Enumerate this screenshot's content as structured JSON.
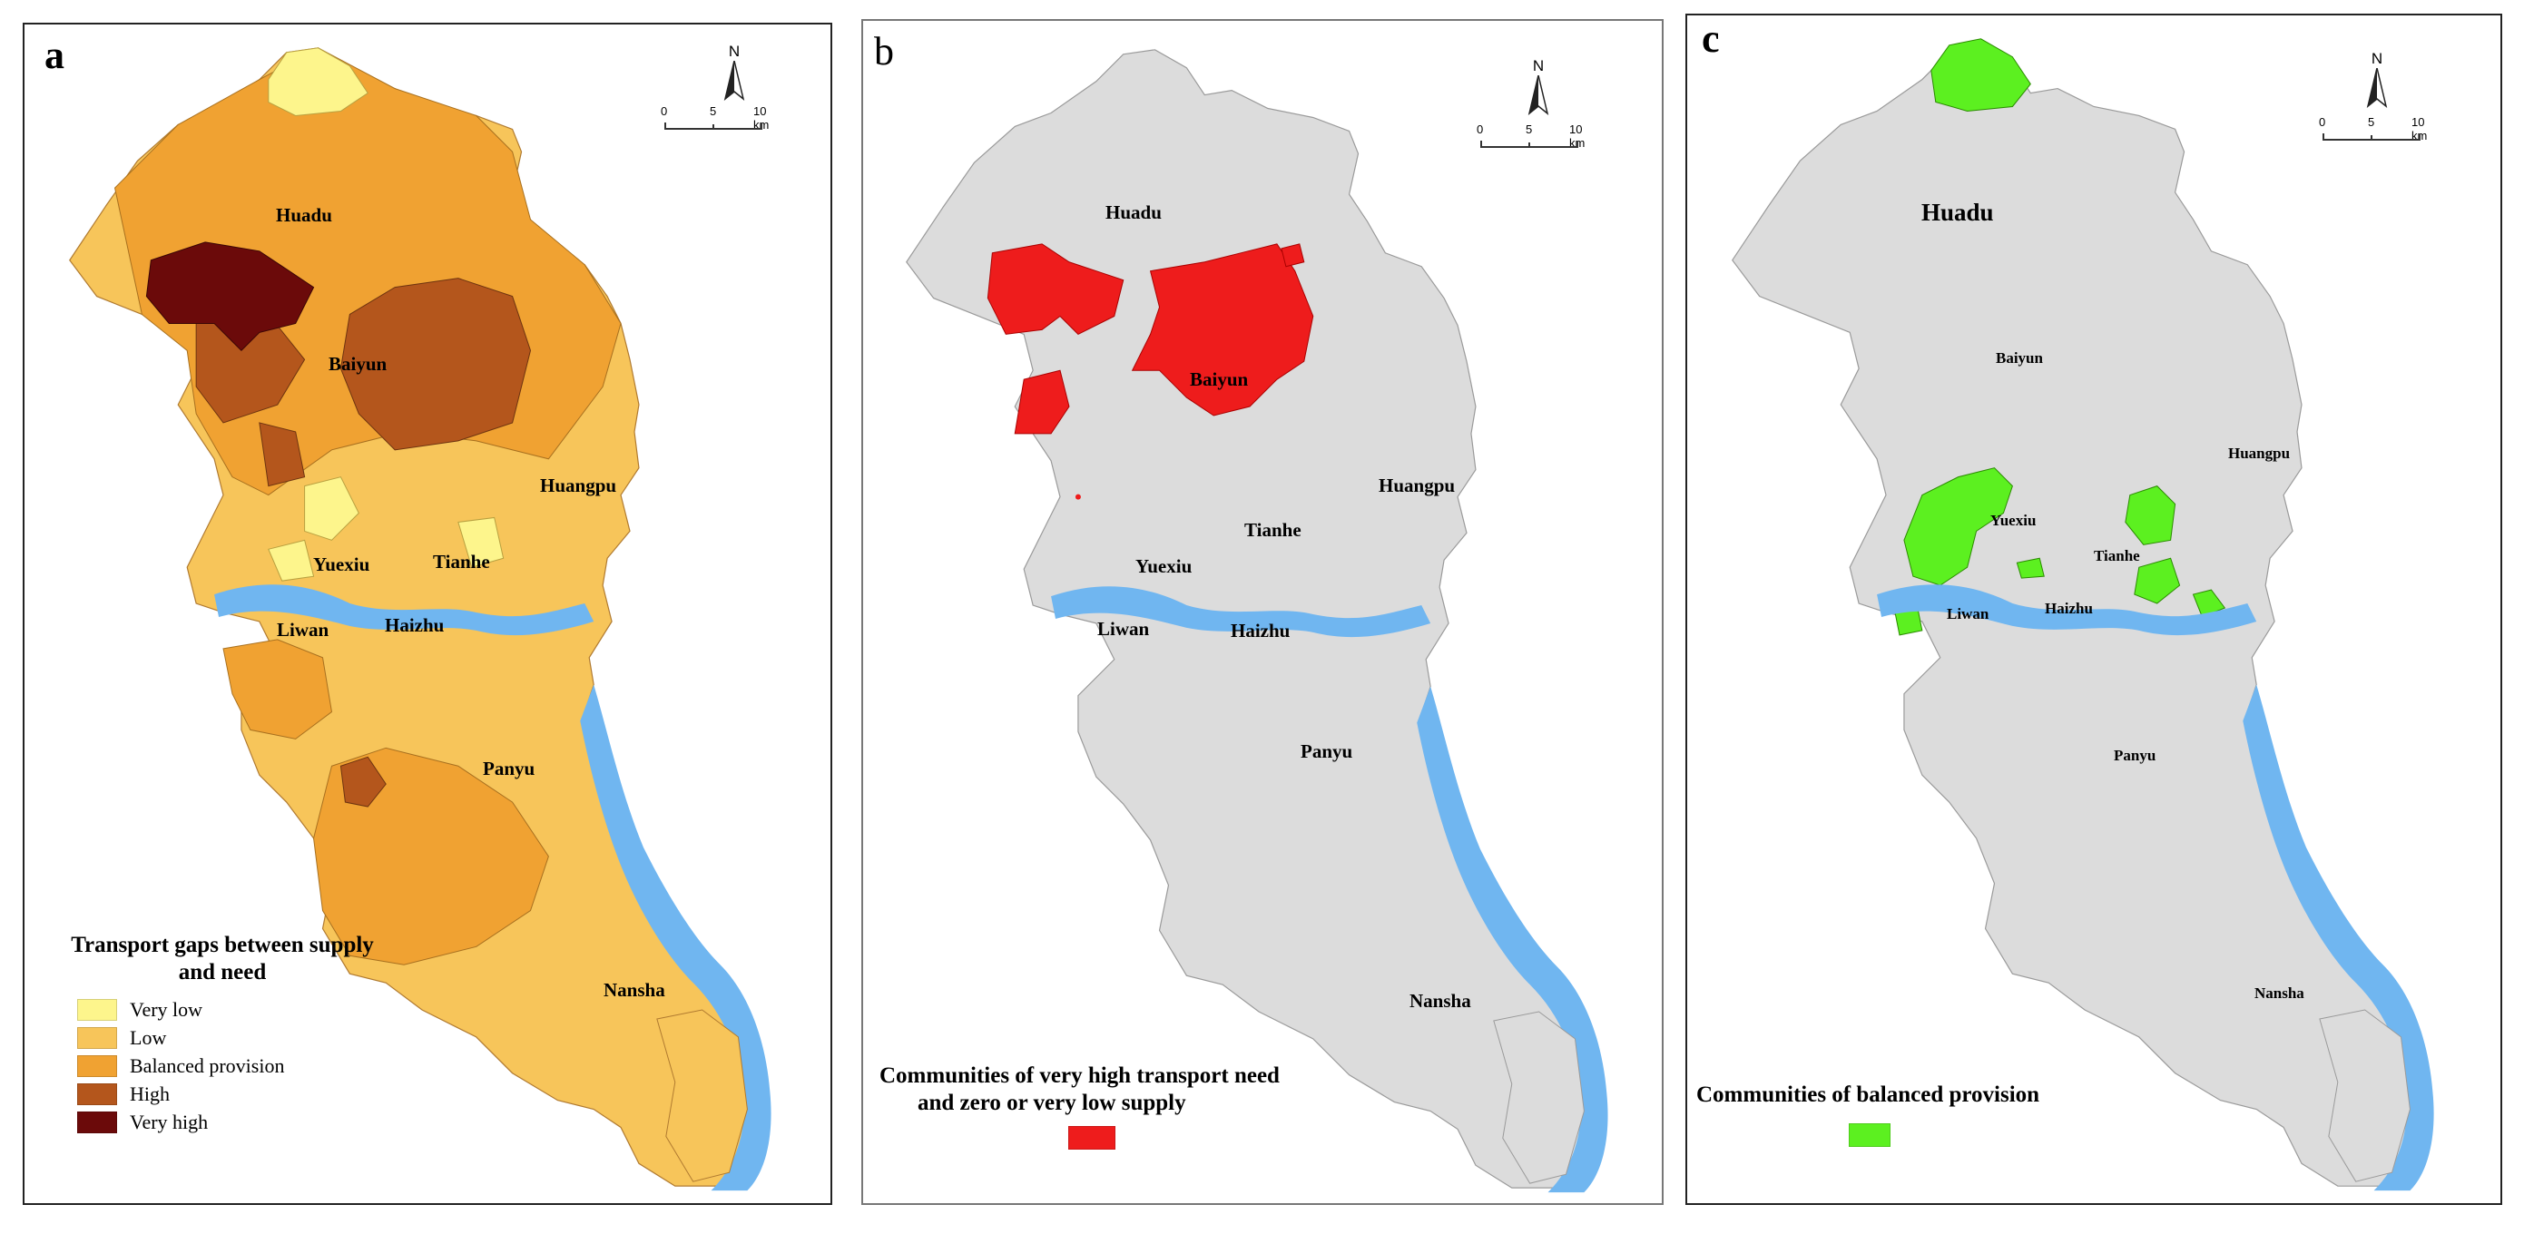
{
  "panels": {
    "a": {
      "letter": "a",
      "districts": {
        "huadu": "Huadu",
        "baiyun": "Baiyun",
        "huangpu": "Huangpu",
        "yuexiu": "Yuexiu",
        "tianhe": "Tianhe",
        "liwan": "Liwan",
        "haizhu": "Haizhu",
        "panyu": "Panyu",
        "nansha": "Nansha"
      },
      "legend": {
        "title_line1": "Transport gaps between supply",
        "title_line2": "and need",
        "items": [
          {
            "label": "Very low",
            "color": "#fdf58c"
          },
          {
            "label": "Low",
            "color": "#f7c55a"
          },
          {
            "label": "Balanced provision",
            "color": "#f0a232"
          },
          {
            "label": "High",
            "color": "#b4561c"
          },
          {
            "label": "Very high",
            "color": "#6b0a0a"
          }
        ]
      }
    },
    "b": {
      "letter": "b",
      "districts": {
        "huadu": "Huadu",
        "baiyun": "Baiyun",
        "huangpu": "Huangpu",
        "yuexiu": "Yuexiu",
        "tianhe": "Tianhe",
        "liwan": "Liwan",
        "haizhu": "Haizhu",
        "panyu": "Panyu",
        "nansha": "Nansha"
      },
      "legend": {
        "title_line1": "Communities of very high transport need",
        "title_line2": "and zero or very low supply",
        "swatch_color": "#ee1c1c"
      }
    },
    "c": {
      "letter": "c",
      "districts": {
        "huadu": "Huadu",
        "baiyun": "Baiyun",
        "huangpu": "Huangpu",
        "yuexiu": "Yuexiu",
        "tianhe": "Tianhe",
        "liwan": "Liwan",
        "haizhu": "Haizhu",
        "panyu": "Panyu",
        "nansha": "Nansha"
      },
      "legend": {
        "title_line1": "Communities of balanced provision",
        "swatch_color": "#5cf020"
      }
    }
  },
  "map_furniture": {
    "north_label": "N",
    "scale_labels": [
      "0",
      "5",
      "10 km"
    ]
  },
  "colors": {
    "water": "#70b6f0",
    "base_grey": "#dcdcdc",
    "boundary": "#9a9a9a"
  }
}
